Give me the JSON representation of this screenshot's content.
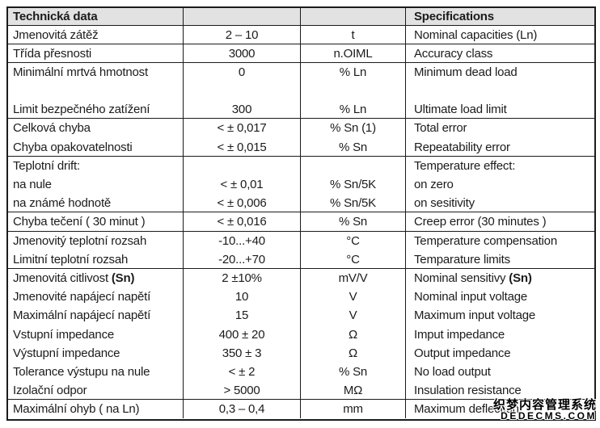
{
  "table": {
    "header": {
      "cz": "Technická data",
      "value": "",
      "unit": "",
      "en": "Specifications"
    },
    "rows": [
      {
        "cz": "Jmenovitá zátěž",
        "value": "2 – 10",
        "unit": "t",
        "en": "Nominal capacities (Ln)",
        "line": true
      },
      {
        "cz": "Třída přesnosti",
        "value": "3000",
        "unit": "n.OIML",
        "en": "Accuracy class",
        "line": true
      },
      {
        "cz": "Minimální mrtvá hmotnost",
        "value": "0",
        "unit": "% Ln",
        "en": "Minimum dead load",
        "line": false
      },
      {
        "cz": "",
        "value": "",
        "unit": "",
        "en": "",
        "line": false
      },
      {
        "cz": "Limit bezpečného zatížení",
        "value": "300",
        "unit": "% Ln",
        "en": "Ultimate load limit",
        "line": true
      },
      {
        "cz": "Celková chyba",
        "value": "< ± 0,017",
        "unit": "% Sn (1)",
        "en": "Total error",
        "line": false
      },
      {
        "cz": "Chyba opakovatelnosti",
        "value": "< ± 0,015",
        "unit": "% Sn",
        "en": "Repeatability error",
        "line": true
      },
      {
        "cz": "Teplotní drift:",
        "value": "",
        "unit": "",
        "en": "Temperature effect:",
        "line": false
      },
      {
        "cz": "na nule",
        "value": "< ± 0,01",
        "unit": "% Sn/5K",
        "en": "on zero",
        "line": false
      },
      {
        "cz": "na známé hodnotě",
        "value": "< ± 0,006",
        "unit": "% Sn/5K",
        "en": "on sesitivity",
        "line": true
      },
      {
        "cz": "Chyba tečení ( 30 minut )",
        "value": "< ± 0,016",
        "unit": "% Sn",
        "en": "Creep error (30 minutes )",
        "line": true
      },
      {
        "cz": "Jmenovitý teplotní rozsah",
        "value": "-10...+40",
        "unit": "°C",
        "en": "Temperature compensation",
        "line": false
      },
      {
        "cz": "Limitní teplotní rozsah",
        "value": "-20...+70",
        "unit": "°C",
        "en": "Temparature limits",
        "line": true
      },
      {
        "cz": "Jmenovitá citlivost ",
        "cz_b": "(Sn)",
        "value": "2 ±10%",
        "unit": "mV/V",
        "en": "Nominal sensitivy ",
        "en_b": "(Sn)",
        "line": false
      },
      {
        "cz": "Jmenovité napájecí napětí",
        "value": "10",
        "unit": "V",
        "en": "Nominal input voltage",
        "line": false
      },
      {
        "cz": "Maximální napájecí napětí",
        "value": "15",
        "unit": "V",
        "en": "Maximum input voltage",
        "line": false
      },
      {
        "cz": "Vstupní impedance",
        "value": "400 ± 20",
        "unit": "Ω",
        "en": "Imput impedance",
        "line": false
      },
      {
        "cz": "Výstupní impedance",
        "value": "350 ± 3",
        "unit": "Ω",
        "en": "Output impedance",
        "line": false
      },
      {
        "cz": "Tolerance výstupu na nule",
        "value": "< ± 2",
        "unit": "% Sn",
        "en": "No load output",
        "line": false
      },
      {
        "cz": "Izolační odpor",
        "value": "> 5000",
        "unit": "MΩ",
        "en": "Insulation resistance",
        "line": true
      },
      {
        "cz": "Maximální ohyb ( na Ln)",
        "value": "0,3 – 0,4",
        "unit": "mm",
        "en": "Maximum deflection",
        "line": false
      }
    ]
  },
  "watermark": {
    "line1": "织梦内容管理系统",
    "line2": "DEDECMS.COM"
  },
  "colors": {
    "header_bg": "#e2e2e2",
    "border": "#1b1b1b",
    "text": "#1b1b1b"
  }
}
